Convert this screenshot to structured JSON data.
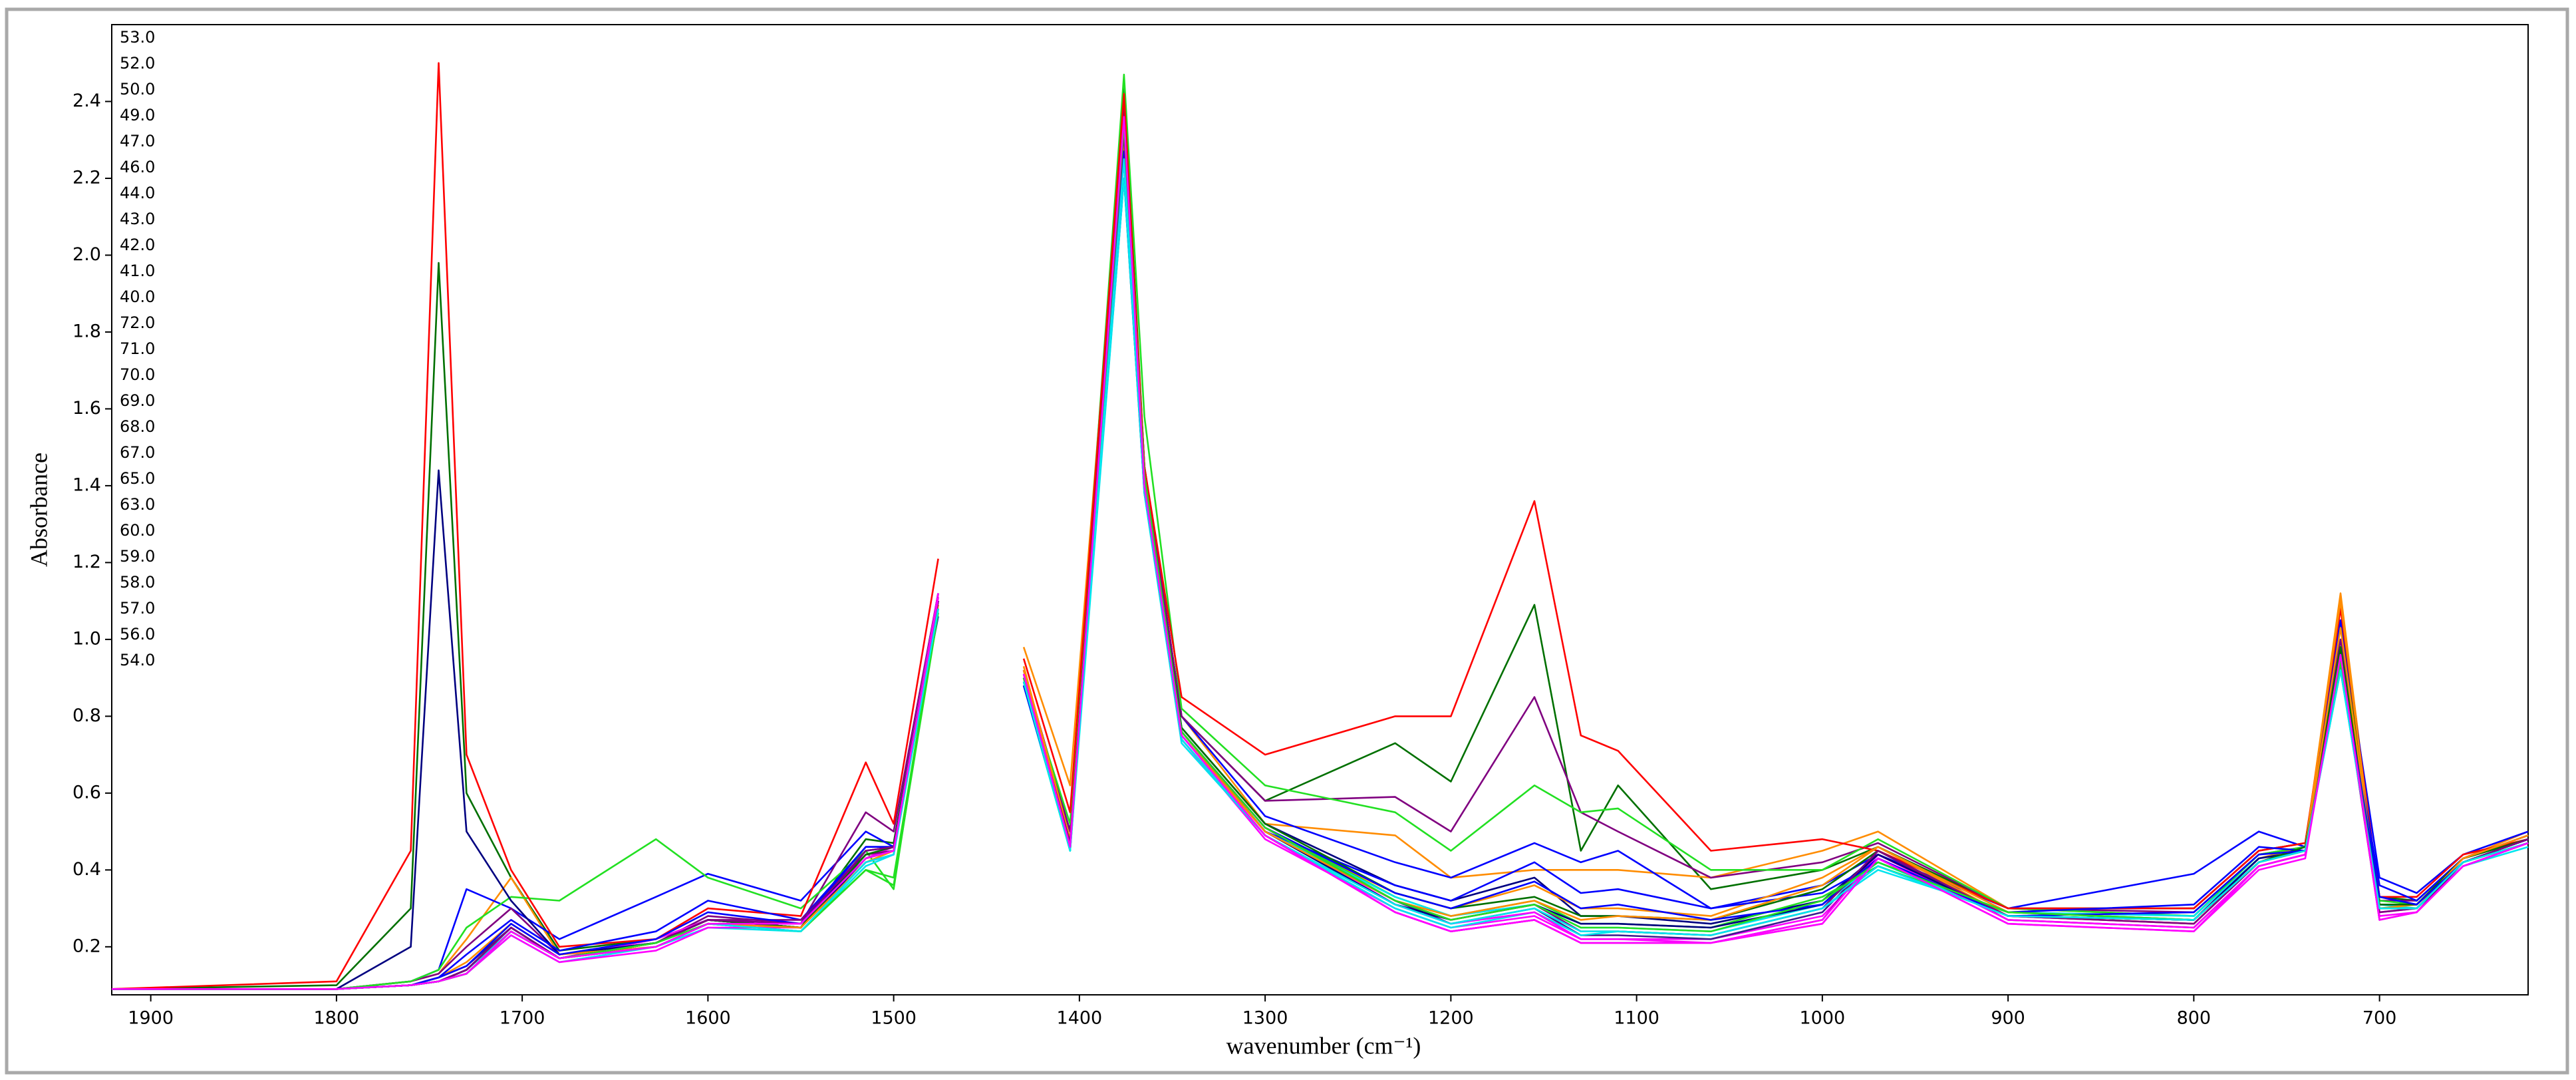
{
  "chart_data": {
    "type": "line",
    "x_label": "wavenumber (cm⁻¹)",
    "y_label": "Absorbance",
    "xlim": [
      1921,
      620
    ],
    "ylim": [
      0.075,
      2.6
    ],
    "xticks": [
      1900,
      1800,
      1700,
      1600,
      1500,
      1400,
      1300,
      1200,
      1100,
      1000,
      900,
      800,
      700
    ],
    "yticks": [
      0.2,
      0.4,
      0.6,
      0.8,
      {
        "value": 1,
        "label": "1.0"
      },
      1.2,
      1.4,
      1.6,
      1.8,
      {
        "value": 2,
        "label": "2.0"
      },
      2.2,
      2.4
    ],
    "legend": "upper left",
    "x": [
      1921,
      1800,
      1760,
      1745,
      1730,
      1706,
      1680,
      1628,
      1600,
      1550,
      1515,
      1500,
      1476,
      1455,
      1430,
      1405,
      1376,
      1365,
      1345,
      1300,
      1230,
      1200,
      1155,
      1130,
      1110,
      1060,
      1000,
      970,
      900,
      800,
      765,
      740,
      721,
      700,
      680,
      655,
      620
    ],
    "series": [
      {
        "name": "53.0",
        "color": "#ff00ff",
        "values": [
          0.09,
          0.09,
          0.1,
          0.11,
          0.13,
          0.24,
          0.17,
          0.2,
          0.26,
          0.25,
          0.42,
          0.44,
          1.1,
          null,
          0.9,
          0.46,
          2.35,
          1.4,
          0.74,
          0.48,
          0.3,
          0.25,
          0.28,
          0.22,
          0.22,
          0.22,
          0.28,
          0.43,
          0.28,
          0.26,
          0.42,
          0.45,
          0.95,
          0.29,
          0.3,
          0.42,
          0.47
        ]
      },
      {
        "name": "52.0",
        "color": "#3c1a8c",
        "values": [
          0.09,
          0.09,
          0.1,
          0.12,
          0.15,
          0.25,
          0.17,
          0.21,
          0.27,
          0.25,
          0.44,
          0.45,
          1.08,
          null,
          0.88,
          0.47,
          2.2,
          1.38,
          0.76,
          0.5,
          0.32,
          0.26,
          0.3,
          0.23,
          0.23,
          0.22,
          0.29,
          0.44,
          0.28,
          0.27,
          0.43,
          0.45,
          0.92,
          0.31,
          0.31,
          0.42,
          0.48
        ]
      },
      {
        "name": "50.0",
        "color": "#007000",
        "values": [
          0.09,
          0.1,
          0.3,
          1.98,
          0.6,
          0.38,
          0.19,
          0.22,
          0.27,
          0.25,
          0.48,
          0.47,
          1.12,
          null,
          0.92,
          0.5,
          2.45,
          1.45,
          0.8,
          0.58,
          0.73,
          0.63,
          1.09,
          0.45,
          0.62,
          0.35,
          0.4,
          0.46,
          0.3,
          0.3,
          0.45,
          0.47,
          1.05,
          0.33,
          0.32,
          0.43,
          0.48
        ]
      },
      {
        "name": "49.0",
        "color": "#ff8c00",
        "values": [
          0.09,
          0.09,
          0.11,
          0.13,
          0.22,
          0.38,
          0.18,
          0.21,
          0.27,
          0.25,
          0.45,
          0.46,
          1.1,
          null,
          0.98,
          0.62,
          2.38,
          1.42,
          0.8,
          0.52,
          0.49,
          0.38,
          0.4,
          0.4,
          0.4,
          0.38,
          0.45,
          0.5,
          0.3,
          0.28,
          0.43,
          0.46,
          1.12,
          0.31,
          0.31,
          0.43,
          0.5
        ]
      },
      {
        "name": "47.0",
        "color": "#0000ff",
        "values": [
          0.09,
          0.09,
          0.11,
          0.14,
          0.35,
          0.3,
          0.22,
          0.33,
          0.39,
          0.32,
          0.5,
          0.46,
          1.12,
          null,
          0.92,
          0.5,
          2.4,
          1.45,
          0.8,
          0.54,
          0.42,
          0.38,
          0.47,
          0.42,
          0.45,
          0.3,
          0.36,
          0.44,
          0.3,
          0.39,
          0.5,
          0.46,
          1.05,
          0.38,
          0.34,
          0.44,
          0.5
        ]
      },
      {
        "name": "46.0",
        "color": "#800080",
        "values": [
          0.09,
          0.09,
          0.11,
          0.13,
          0.2,
          0.3,
          0.18,
          0.21,
          0.28,
          0.26,
          0.55,
          0.5,
          1.12,
          null,
          0.92,
          0.5,
          2.4,
          1.45,
          0.8,
          0.58,
          0.59,
          0.5,
          0.85,
          0.55,
          0.5,
          0.38,
          0.42,
          0.47,
          0.3,
          0.29,
          0.44,
          0.46,
          1.0,
          0.32,
          0.32,
          0.43,
          0.48
        ]
      },
      {
        "name": "44.0",
        "color": "#22e022",
        "values": [
          0.09,
          0.09,
          0.11,
          0.14,
          0.25,
          0.33,
          0.32,
          0.48,
          0.38,
          0.3,
          0.45,
          0.35,
          1.1,
          null,
          0.9,
          0.52,
          2.47,
          1.58,
          0.82,
          0.62,
          0.55,
          0.45,
          0.62,
          0.55,
          0.56,
          0.4,
          0.4,
          0.48,
          0.3,
          0.28,
          0.44,
          0.46,
          0.98,
          0.32,
          0.31,
          0.43,
          0.48
        ]
      },
      {
        "name": "43.0",
        "color": "#00e5ee",
        "values": [
          0.09,
          0.09,
          0.1,
          0.11,
          0.13,
          0.23,
          0.16,
          0.2,
          0.25,
          0.24,
          0.41,
          0.44,
          1.08,
          null,
          0.88,
          0.45,
          2.2,
          1.38,
          0.73,
          0.49,
          0.3,
          0.25,
          0.29,
          0.23,
          0.24,
          0.23,
          0.3,
          0.4,
          0.29,
          0.28,
          0.43,
          0.45,
          0.93,
          0.31,
          0.3,
          0.41,
          0.46
        ]
      },
      {
        "name": "42.0",
        "color": "#ff00ff",
        "values": [
          0.09,
          0.09,
          0.1,
          0.11,
          0.14,
          0.25,
          0.17,
          0.22,
          0.27,
          0.26,
          0.43,
          0.46,
          1.12,
          null,
          0.92,
          0.47,
          2.32,
          1.41,
          0.76,
          0.51,
          0.31,
          0.26,
          0.29,
          0.22,
          0.22,
          0.21,
          0.26,
          0.43,
          0.26,
          0.24,
          0.41,
          0.44,
          0.96,
          0.28,
          0.29,
          0.41,
          0.47
        ]
      },
      {
        "name": "41.0",
        "color": "#000080",
        "values": [
          0.09,
          0.09,
          0.2,
          1.44,
          0.5,
          0.32,
          0.18,
          0.21,
          0.27,
          0.25,
          0.45,
          0.46,
          1.1,
          null,
          0.9,
          0.47,
          2.35,
          1.42,
          0.77,
          0.52,
          0.36,
          0.32,
          0.38,
          0.28,
          0.28,
          0.26,
          0.32,
          0.44,
          0.28,
          0.27,
          0.43,
          0.45,
          0.97,
          0.31,
          0.31,
          0.42,
          0.48
        ]
      },
      {
        "name": "40.0",
        "color": "#ff0000",
        "values": [
          0.09,
          0.11,
          0.45,
          2.5,
          0.7,
          0.4,
          0.2,
          0.22,
          0.3,
          0.28,
          0.68,
          0.52,
          1.21,
          null,
          0.95,
          0.55,
          2.42,
          1.45,
          0.85,
          0.7,
          0.8,
          0.8,
          1.36,
          0.75,
          0.71,
          0.45,
          0.48,
          0.45,
          0.3,
          0.3,
          0.45,
          0.47,
          1.08,
          0.33,
          0.33,
          0.44,
          0.48
        ]
      },
      {
        "name": "72.0",
        "color": "#ff8c00",
        "values": [
          0.09,
          0.09,
          0.1,
          0.12,
          0.16,
          0.26,
          0.18,
          0.2,
          0.26,
          0.25,
          0.43,
          0.45,
          1.08,
          null,
          0.93,
          0.48,
          2.28,
          1.4,
          0.76,
          0.5,
          0.34,
          0.3,
          0.36,
          0.3,
          0.3,
          0.28,
          0.38,
          0.46,
          0.29,
          0.27,
          0.42,
          0.46,
          1.1,
          0.3,
          0.31,
          0.43,
          0.49
        ]
      },
      {
        "name": "71.0",
        "color": "#0000ff",
        "values": [
          0.09,
          0.09,
          0.1,
          0.12,
          0.18,
          0.27,
          0.19,
          0.24,
          0.32,
          0.27,
          0.46,
          0.46,
          1.06,
          null,
          0.88,
          0.46,
          2.25,
          1.39,
          0.75,
          0.5,
          0.36,
          0.32,
          0.42,
          0.34,
          0.35,
          0.3,
          0.34,
          0.42,
          0.29,
          0.31,
          0.46,
          0.45,
          0.95,
          0.36,
          0.32,
          0.43,
          0.49
        ]
      },
      {
        "name": "70.0",
        "color": "#800080",
        "values": [
          0.09,
          0.09,
          0.1,
          0.11,
          0.13,
          0.24,
          0.17,
          0.21,
          0.27,
          0.27,
          0.44,
          0.45,
          1.09,
          null,
          0.89,
          0.46,
          2.3,
          1.39,
          0.74,
          0.49,
          0.29,
          0.24,
          0.27,
          0.21,
          0.21,
          0.21,
          0.27,
          0.45,
          0.27,
          0.25,
          0.41,
          0.44,
          0.94,
          0.27,
          0.29,
          0.42,
          0.47
        ]
      },
      {
        "name": "69.0",
        "color": "#22e022",
        "values": [
          0.09,
          0.09,
          0.1,
          0.11,
          0.13,
          0.24,
          0.17,
          0.21,
          0.26,
          0.24,
          0.4,
          0.36,
          1.07,
          null,
          0.89,
          0.45,
          2.33,
          1.42,
          0.76,
          0.51,
          0.33,
          0.28,
          0.32,
          0.26,
          0.26,
          0.25,
          0.33,
          0.41,
          0.29,
          0.27,
          0.42,
          0.45,
          0.93,
          0.3,
          0.3,
          0.42,
          0.47
        ]
      },
      {
        "name": "68.0",
        "color": "#00e5ee",
        "values": [
          0.09,
          0.09,
          0.1,
          0.11,
          0.14,
          0.24,
          0.17,
          0.2,
          0.26,
          0.25,
          0.42,
          0.44,
          1.09,
          null,
          0.9,
          0.45,
          2.28,
          1.39,
          0.75,
          0.5,
          0.33,
          0.28,
          0.31,
          0.25,
          0.25,
          0.24,
          0.31,
          0.42,
          0.28,
          0.27,
          0.42,
          0.45,
          0.92,
          0.3,
          0.3,
          0.42,
          0.47
        ]
      },
      {
        "name": "67.0",
        "color": "#ff00ff",
        "values": [
          0.09,
          0.09,
          0.1,
          0.11,
          0.13,
          0.23,
          0.16,
          0.19,
          0.25,
          0.25,
          0.42,
          0.44,
          1.11,
          null,
          0.91,
          0.46,
          2.28,
          1.4,
          0.74,
          0.49,
          0.29,
          0.24,
          0.27,
          0.21,
          0.21,
          0.21,
          0.27,
          0.44,
          0.27,
          0.25,
          0.41,
          0.44,
          0.95,
          0.27,
          0.29,
          0.41,
          0.47
        ]
      },
      {
        "name": "65.0",
        "color": "#000080",
        "values": [
          0.09,
          0.09,
          0.1,
          0.11,
          0.14,
          0.25,
          0.17,
          0.21,
          0.27,
          0.25,
          0.43,
          0.45,
          1.1,
          null,
          0.9,
          0.47,
          2.31,
          1.41,
          0.75,
          0.5,
          0.31,
          0.27,
          0.31,
          0.26,
          0.26,
          0.25,
          0.31,
          0.44,
          0.28,
          0.27,
          0.42,
          0.45,
          0.96,
          0.3,
          0.3,
          0.42,
          0.48
        ]
      },
      {
        "name": "63.0",
        "color": "#007000",
        "values": [
          0.09,
          0.09,
          0.1,
          0.11,
          0.14,
          0.25,
          0.17,
          0.21,
          0.27,
          0.25,
          0.44,
          0.46,
          1.11,
          null,
          0.91,
          0.47,
          2.36,
          1.42,
          0.77,
          0.52,
          0.34,
          0.3,
          0.33,
          0.28,
          0.28,
          0.27,
          0.35,
          0.45,
          0.28,
          0.27,
          0.42,
          0.46,
          0.98,
          0.31,
          0.31,
          0.43,
          0.48
        ]
      },
      {
        "name": "60.0",
        "color": "#ff8c00",
        "values": [
          0.09,
          0.09,
          0.1,
          0.11,
          0.13,
          0.24,
          0.17,
          0.2,
          0.26,
          0.25,
          0.42,
          0.45,
          1.09,
          null,
          0.92,
          0.47,
          2.3,
          1.4,
          0.75,
          0.5,
          0.32,
          0.28,
          0.32,
          0.27,
          0.28,
          0.27,
          0.36,
          0.46,
          0.28,
          0.26,
          0.42,
          0.45,
          1.03,
          0.3,
          0.3,
          0.43,
          0.49
        ]
      },
      {
        "name": "59.0",
        "color": "#0000ff",
        "values": [
          0.09,
          0.09,
          0.1,
          0.12,
          0.15,
          0.26,
          0.18,
          0.22,
          0.29,
          0.26,
          0.46,
          0.46,
          1.08,
          null,
          0.89,
          0.47,
          2.27,
          1.4,
          0.76,
          0.51,
          0.34,
          0.3,
          0.37,
          0.3,
          0.31,
          0.27,
          0.31,
          0.43,
          0.28,
          0.29,
          0.44,
          0.45,
          0.94,
          0.33,
          0.31,
          0.42,
          0.48
        ]
      },
      {
        "name": "58.0",
        "color": "#800080",
        "values": [
          0.09,
          0.09,
          0.1,
          0.11,
          0.14,
          0.25,
          0.17,
          0.21,
          0.27,
          0.26,
          0.45,
          0.46,
          1.1,
          null,
          0.9,
          0.47,
          2.32,
          1.41,
          0.76,
          0.51,
          0.32,
          0.27,
          0.31,
          0.24,
          0.24,
          0.23,
          0.3,
          0.45,
          0.28,
          0.26,
          0.42,
          0.45,
          0.95,
          0.29,
          0.3,
          0.42,
          0.48
        ]
      },
      {
        "name": "57.0",
        "color": "#22e022",
        "values": [
          0.09,
          0.09,
          0.1,
          0.11,
          0.13,
          0.24,
          0.17,
          0.21,
          0.26,
          0.24,
          0.4,
          0.38,
          1.08,
          null,
          0.9,
          0.46,
          2.34,
          1.43,
          0.76,
          0.51,
          0.32,
          0.27,
          0.31,
          0.25,
          0.25,
          0.24,
          0.32,
          0.42,
          0.29,
          0.27,
          0.42,
          0.45,
          0.94,
          0.3,
          0.3,
          0.42,
          0.47
        ]
      },
      {
        "name": "56.0",
        "color": "#00e5ee",
        "values": [
          0.09,
          0.09,
          0.1,
          0.11,
          0.13,
          0.24,
          0.17,
          0.2,
          0.26,
          0.24,
          0.42,
          0.44,
          1.08,
          null,
          0.89,
          0.45,
          2.25,
          1.39,
          0.74,
          0.49,
          0.31,
          0.26,
          0.3,
          0.24,
          0.24,
          0.23,
          0.3,
          0.41,
          0.28,
          0.27,
          0.42,
          0.45,
          0.92,
          0.3,
          0.3,
          0.42,
          0.47
        ]
      },
      {
        "name": "54.0",
        "color": "#ff00ff",
        "values": [
          0.09,
          0.09,
          0.1,
          0.11,
          0.13,
          0.24,
          0.17,
          0.2,
          0.26,
          0.26,
          0.43,
          0.45,
          1.11,
          null,
          0.91,
          0.46,
          2.36,
          1.4,
          0.75,
          0.49,
          0.29,
          0.24,
          0.27,
          0.21,
          0.21,
          0.21,
          0.26,
          0.43,
          0.26,
          0.24,
          0.4,
          0.43,
          0.96,
          0.27,
          0.29,
          0.41,
          0.47
        ]
      }
    ]
  }
}
